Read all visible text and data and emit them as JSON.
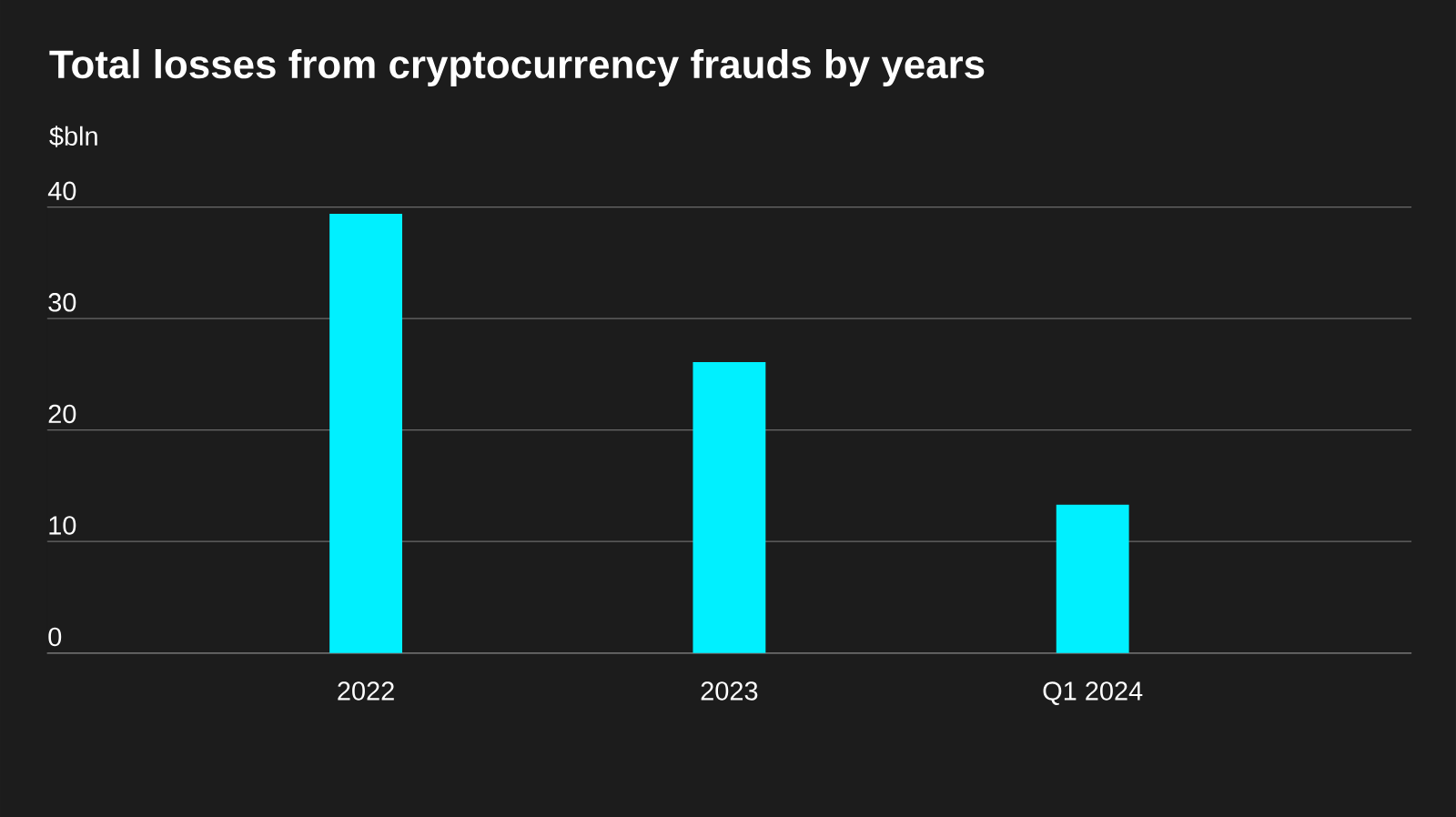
{
  "chart_data": {
    "type": "bar",
    "title": "Total losses from cryptocurrency frauds by years",
    "ylabel": "$bln",
    "categories": [
      "2022",
      "2023",
      "Q1 2024"
    ],
    "values": [
      39.4,
      26.1,
      13.3
    ],
    "color": "#00f0ff",
    "ylim": [
      0,
      40
    ],
    "yticks": [
      0,
      10,
      20,
      30,
      40
    ],
    "grid": "y"
  }
}
